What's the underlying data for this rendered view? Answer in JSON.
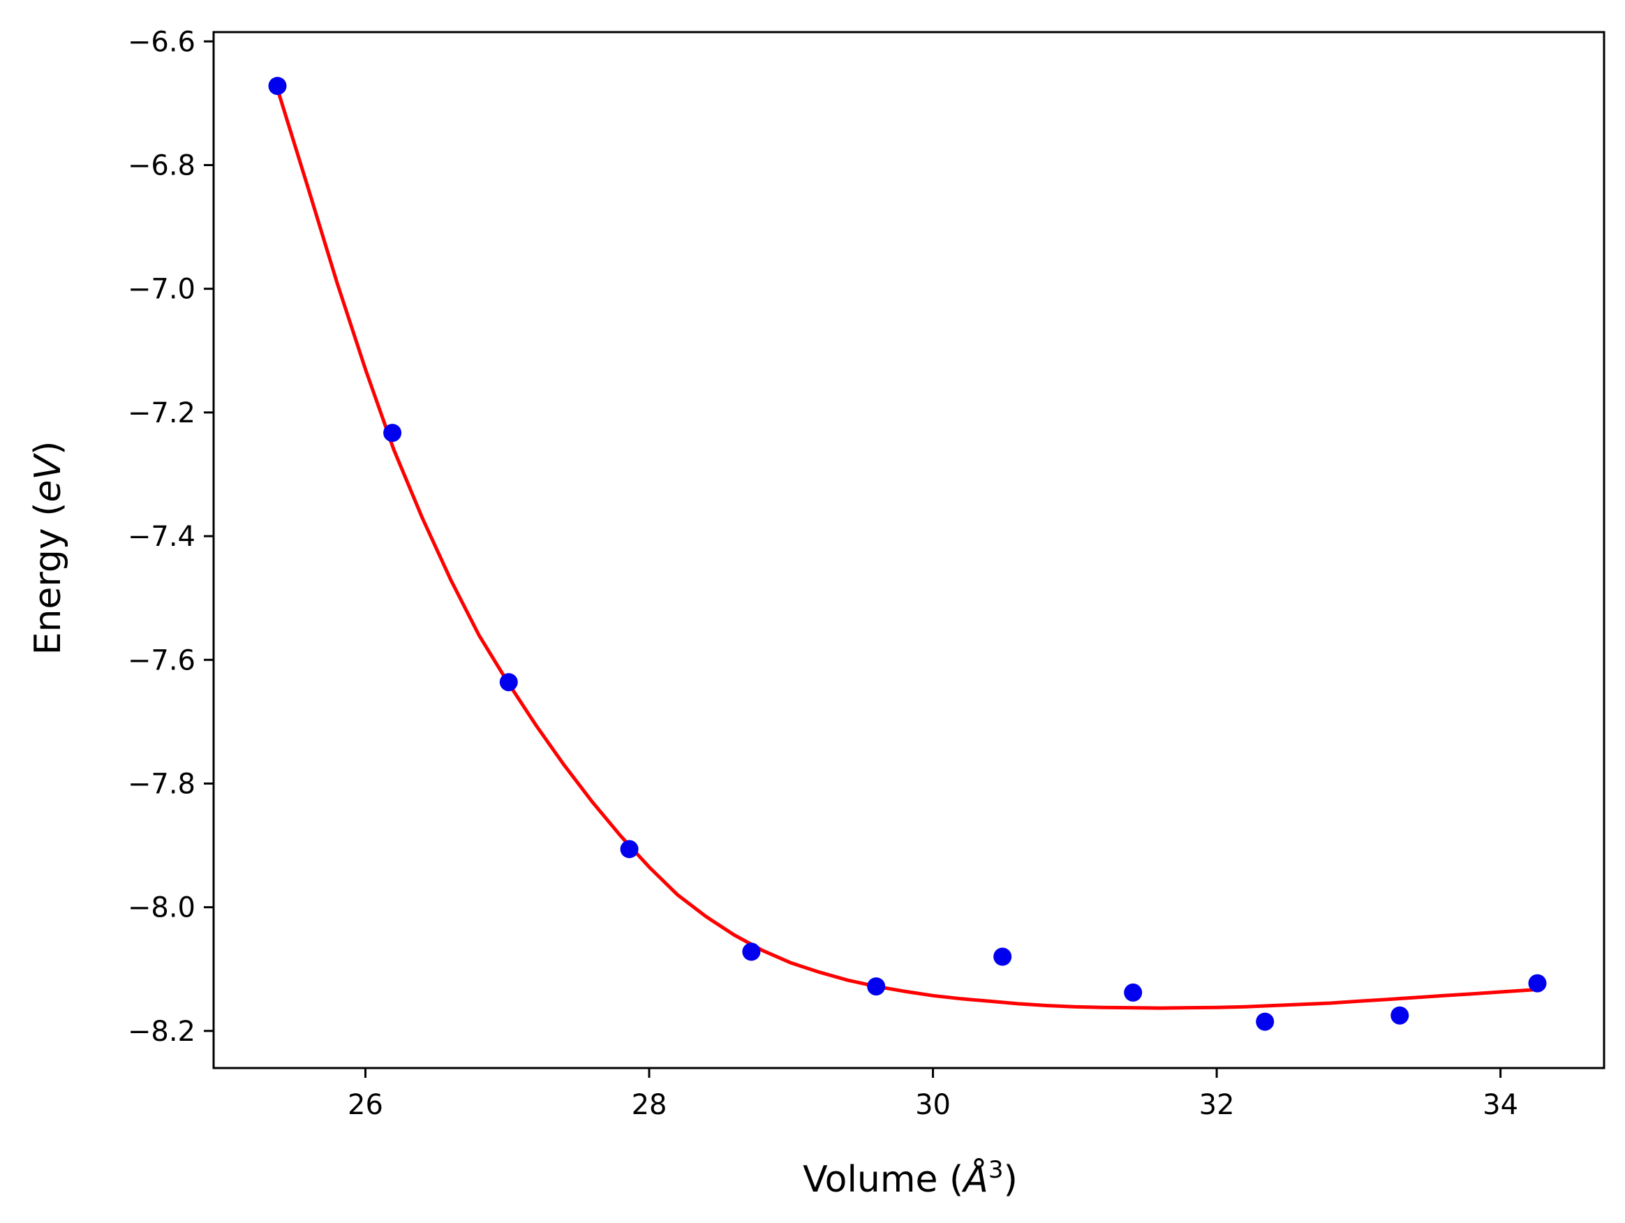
{
  "chart_data": {
    "type": "scatter",
    "title": "",
    "xlabel": {
      "prefix": "Volume (",
      "symbol": "Å",
      "superscript": "3",
      "suffix": ")"
    },
    "ylabel": {
      "prefix": "Energy (",
      "italic": "eV",
      "suffix": ")"
    },
    "xlim": [
      24.93,
      34.73
    ],
    "ylim": [
      -8.26,
      -6.585
    ],
    "xticks": [
      26,
      28,
      30,
      32,
      34
    ],
    "xtick_labels": [
      "26",
      "28",
      "30",
      "32",
      "34"
    ],
    "yticks": [
      -6.6,
      -6.8,
      -7.0,
      -7.2,
      -7.4,
      -7.6,
      -7.8,
      -8.0,
      -8.2
    ],
    "ytick_labels": [
      "−6.6",
      "−6.8",
      "−7.0",
      "−7.2",
      "−7.4",
      "−7.6",
      "−7.8",
      "−8.0",
      "−8.2"
    ],
    "grid": false,
    "legend": "none",
    "series": [
      {
        "kind": "points",
        "color": "#0000ee",
        "x": [
          25.38,
          26.19,
          27.01,
          27.86,
          28.72,
          29.6,
          30.49,
          31.41,
          32.34,
          33.29,
          34.26
        ],
        "y": [
          -6.672,
          -7.233,
          -7.636,
          -7.906,
          -8.072,
          -8.128,
          -8.08,
          -8.138,
          -8.185,
          -8.175,
          -8.123
        ]
      },
      {
        "kind": "fit-curve",
        "color": "#ff0000",
        "x": [
          25.38,
          25.6,
          25.8,
          26.0,
          26.2,
          26.4,
          26.6,
          26.8,
          27.0,
          27.2,
          27.4,
          27.6,
          27.8,
          28.0,
          28.2,
          28.4,
          28.6,
          28.8,
          29.0,
          29.2,
          29.4,
          29.6,
          29.8,
          30.0,
          30.2,
          30.4,
          30.6,
          30.8,
          31.0,
          31.2,
          31.4,
          31.6,
          31.8,
          32.0,
          32.2,
          32.4,
          32.6,
          32.8,
          33.0,
          33.2,
          33.4,
          33.6,
          33.8,
          34.0,
          34.26
        ],
        "y": [
          -6.677,
          -6.84,
          -6.99,
          -7.13,
          -7.26,
          -7.37,
          -7.47,
          -7.56,
          -7.635,
          -7.705,
          -7.77,
          -7.83,
          -7.885,
          -7.935,
          -7.98,
          -8.015,
          -8.045,
          -8.07,
          -8.09,
          -8.105,
          -8.118,
          -8.128,
          -8.136,
          -8.143,
          -8.148,
          -8.152,
          -8.156,
          -8.159,
          -8.161,
          -8.162,
          -8.1625,
          -8.163,
          -8.1625,
          -8.162,
          -8.161,
          -8.159,
          -8.157,
          -8.155,
          -8.152,
          -8.149,
          -8.146,
          -8.143,
          -8.14,
          -8.137,
          -8.133
        ]
      }
    ]
  }
}
